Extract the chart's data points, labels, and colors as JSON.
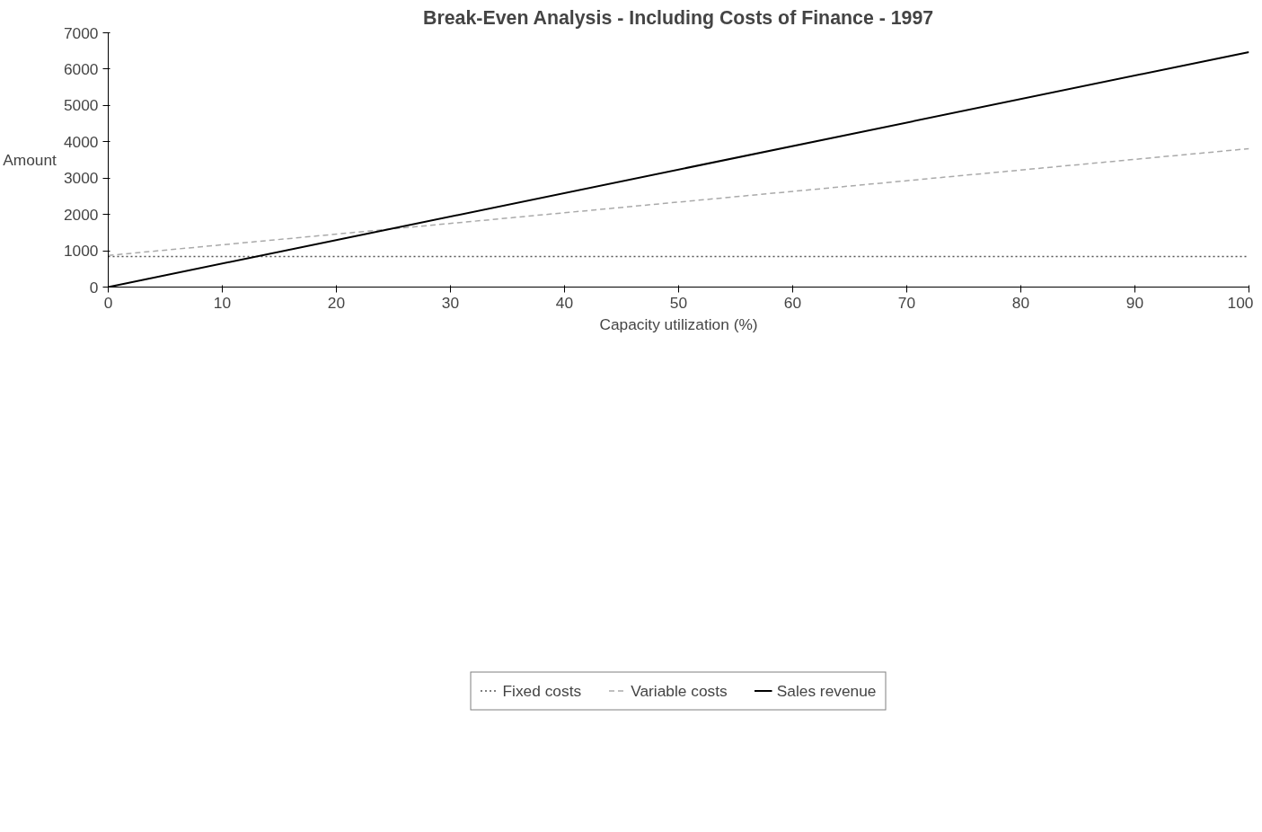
{
  "chart_data": {
    "type": "line",
    "title": "Break-Even Analysis - Including Costs of Finance - 1997",
    "xlabel": "Capacity utilization (%)",
    "ylabel": "Amount",
    "x": [
      0,
      100
    ],
    "series": [
      {
        "name": "Fixed costs",
        "color": "#555555",
        "values": [
          840,
          840
        ],
        "line_style": "dotted"
      },
      {
        "name": "Variable costs",
        "color": "#aaaaaa",
        "values": [
          870,
          3810
        ],
        "line_style": "dashed"
      },
      {
        "name": "Sales revenue",
        "color": "#000000",
        "values": [
          0,
          6470
        ],
        "line_style": "solid"
      }
    ],
    "xlim": [
      0,
      100
    ],
    "ylim": [
      0,
      7000
    ],
    "xticks": [
      0,
      10,
      20,
      30,
      40,
      50,
      60,
      70,
      80,
      90,
      100
    ],
    "yticks": [
      0,
      1000,
      2000,
      3000,
      4000,
      5000,
      6000,
      7000
    ],
    "grid": false,
    "legend": "bottom",
    "marker": "none"
  }
}
